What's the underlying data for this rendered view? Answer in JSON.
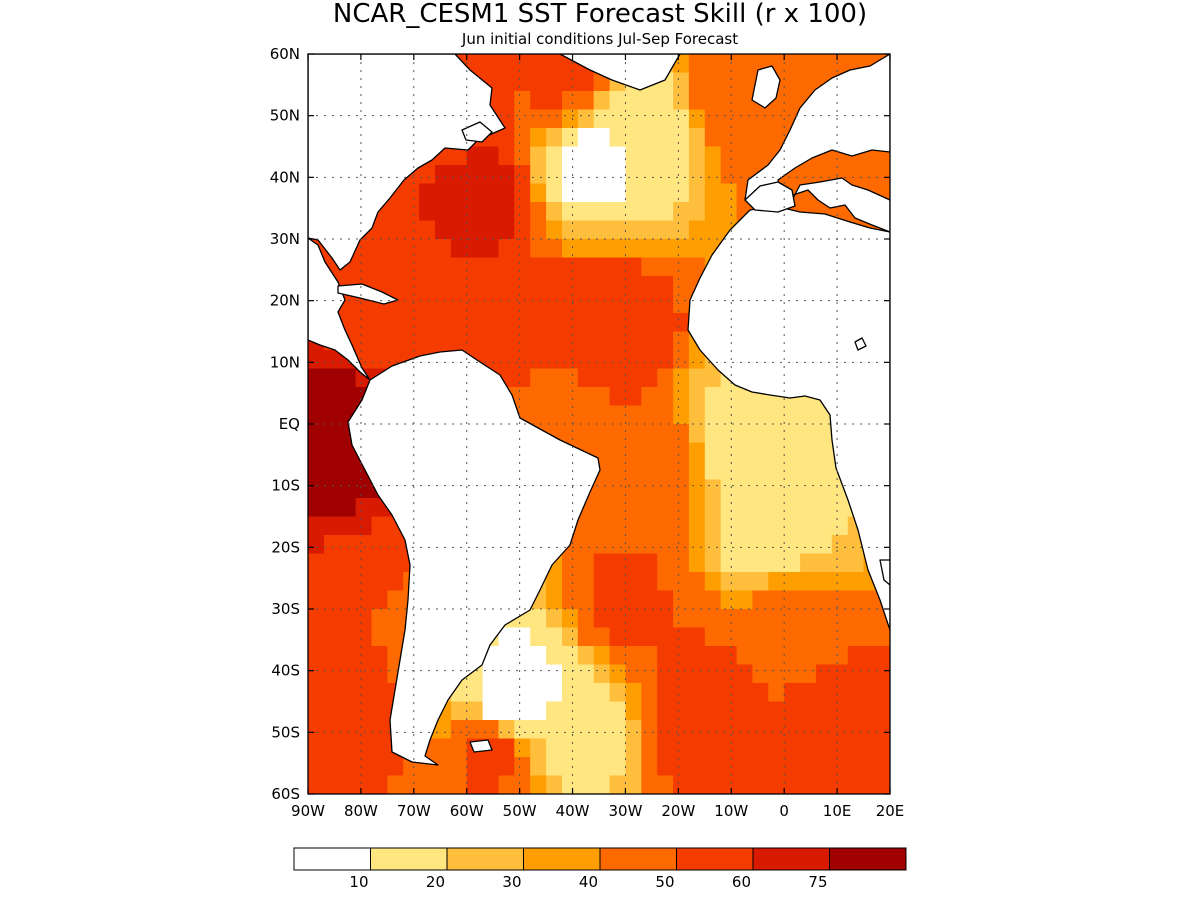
{
  "title": "NCAR_CESM1 SST Forecast Skill (r x 100)",
  "subtitle": "Jun initial conditions  Jul-Sep Forecast",
  "map": {
    "lon_range": [
      -90,
      20
    ],
    "lat_range": [
      -60,
      60
    ],
    "lon_ticks": [
      {
        "value": -90,
        "label": "90W"
      },
      {
        "value": -80,
        "label": "80W"
      },
      {
        "value": -70,
        "label": "70W"
      },
      {
        "value": -60,
        "label": "60W"
      },
      {
        "value": -50,
        "label": "50W"
      },
      {
        "value": -40,
        "label": "40W"
      },
      {
        "value": -30,
        "label": "30W"
      },
      {
        "value": -20,
        "label": "20W"
      },
      {
        "value": -10,
        "label": "10W"
      },
      {
        "value": 0,
        "label": "0"
      },
      {
        "value": 10,
        "label": "10E"
      },
      {
        "value": 20,
        "label": "20E"
      }
    ],
    "lat_ticks": [
      {
        "value": 60,
        "label": "60N"
      },
      {
        "value": 50,
        "label": "50N"
      },
      {
        "value": 40,
        "label": "40N"
      },
      {
        "value": 30,
        "label": "30N"
      },
      {
        "value": 20,
        "label": "20N"
      },
      {
        "value": 10,
        "label": "10N"
      },
      {
        "value": 0,
        "label": "EQ"
      },
      {
        "value": -10,
        "label": "10S"
      },
      {
        "value": -20,
        "label": "20S"
      },
      {
        "value": -30,
        "label": "30S"
      },
      {
        "value": -40,
        "label": "40S"
      },
      {
        "value": -50,
        "label": "50S"
      },
      {
        "value": -60,
        "label": "60S"
      }
    ],
    "grid": "dotted",
    "projection": "lat-lon",
    "land_color": "#ffffff",
    "coast_color": "#000000"
  },
  "colorbar": {
    "levels": [
      "10",
      "20",
      "30",
      "40",
      "50",
      "60",
      "75"
    ],
    "colors": [
      "#ffffff",
      "#ffe680",
      "#ffbe3c",
      "#ff9e00",
      "#ff6a00",
      "#f53c00",
      "#d81a00",
      "#a00000"
    ]
  },
  "chart_data": {
    "type": "heatmap",
    "title": "NCAR_CESM1 SST Forecast Skill (r x 100)",
    "subtitle": "Jun initial conditions  Jul-Sep Forecast",
    "variable": "SST forecast skill, correlation x 100",
    "xlim": [
      -90,
      20
    ],
    "ylim": [
      -60,
      60
    ],
    "contour_levels": [
      10,
      20,
      30,
      40,
      50,
      60,
      75
    ],
    "skill_centers": [
      {
        "lon": -86,
        "lat": 3,
        "value": 80
      },
      {
        "lon": -84,
        "lat": -8,
        "value": 78
      },
      {
        "lon": -57,
        "lat": 37,
        "value": 62
      },
      {
        "lon": -33,
        "lat": 15,
        "value": 60
      },
      {
        "lon": -45,
        "lat": 14,
        "value": 56
      },
      {
        "lon": -80,
        "lat": 17,
        "value": 52
      },
      {
        "lon": -62,
        "lat": 54,
        "value": 56
      },
      {
        "lon": -42,
        "lat": 57,
        "value": 52
      },
      {
        "lon": -7,
        "lat": 53,
        "value": 50
      },
      {
        "lon": -78,
        "lat": -25,
        "value": 50
      },
      {
        "lon": -82,
        "lat": -48,
        "value": 54
      },
      {
        "lon": -55,
        "lat": -53,
        "value": 54
      },
      {
        "lon": -30,
        "lat": -30,
        "value": 52
      },
      {
        "lon": -15,
        "lat": -47,
        "value": 60
      },
      {
        "lon": 8,
        "lat": -49,
        "value": 58
      },
      {
        "lon": 13,
        "lat": 37,
        "value": 48
      },
      {
        "lon": -25,
        "lat": -7,
        "value": 50
      },
      {
        "lon": -43,
        "lat": 2,
        "value": 42
      },
      {
        "lon": 0,
        "lat": -35,
        "value": 44
      },
      {
        "lon": -37,
        "lat": 42,
        "value": 8
      },
      {
        "lon": -28,
        "lat": 47,
        "value": 10
      },
      {
        "lon": -8,
        "lat": -2,
        "value": 12
      },
      {
        "lon": -3,
        "lat": -15,
        "value": 10
      },
      {
        "lon": -50,
        "lat": -42,
        "value": 8
      },
      {
        "lon": -52,
        "lat": -46,
        "value": 5
      },
      {
        "lon": -40,
        "lat": -48,
        "value": 10
      }
    ]
  }
}
